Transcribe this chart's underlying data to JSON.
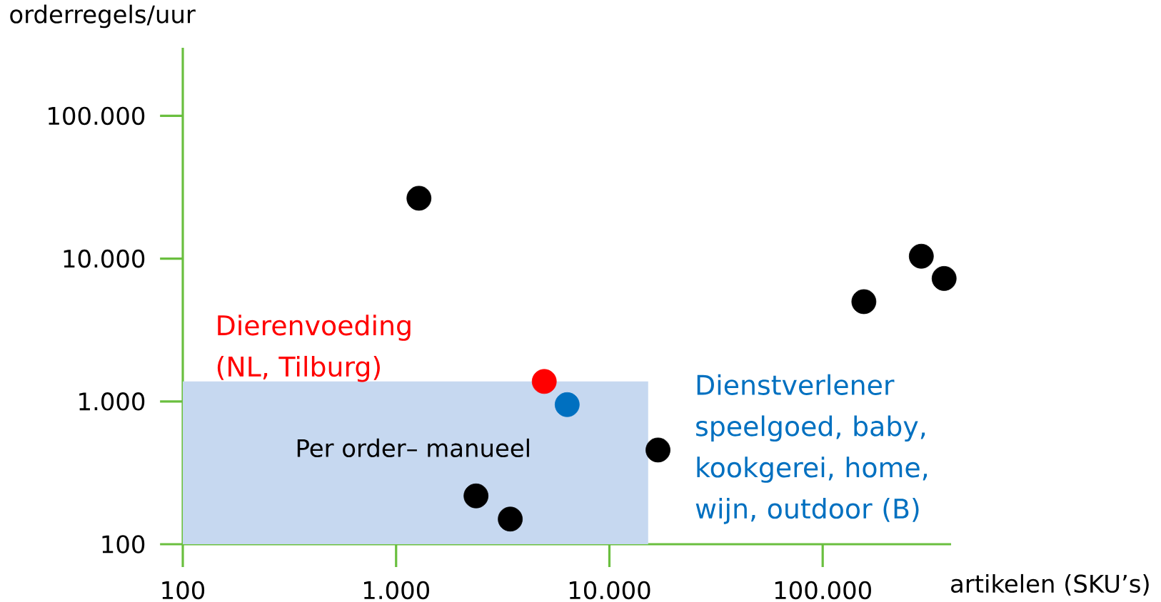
{
  "chart_data": {
    "type": "scatter",
    "xlabel": "artikelen (SKU’s)",
    "ylabel": "orderregels/uur",
    "log": "xy",
    "xlim": [
      100,
      400000
    ],
    "ylim": [
      100,
      300000
    ],
    "xticks": [
      100,
      {
        "value": 1000,
        "label": "1.000"
      },
      {
        "value": 10000,
        "label": "10.000"
      },
      {
        "value": 100000,
        "label": "100.000"
      }
    ],
    "yticks": [
      100,
      {
        "value": 1000,
        "label": "1.000"
      },
      {
        "value": 10000,
        "label": "10.000"
      },
      {
        "value": 100000,
        "label": "100.000"
      }
    ],
    "grid": false,
    "series": [
      {
        "type": "area",
        "name": "Per order– manueel",
        "color": "#c6d8f0",
        "x": [
          100,
          15200
        ],
        "values": [
          1380,
          1380
        ]
      },
      {
        "color": "#000000",
        "x": [
          1280,
          290000,
          371000,
          156000,
          16900,
          2370,
          3430
        ],
        "values": [
          26500,
          10400,
          7270,
          5000,
          457,
          218,
          150
        ]
      },
      {
        "name": "Dierenvoeding (NL, Tilburg)",
        "color": "#ff0000",
        "x": [
          4950
        ],
        "values": [
          1380
        ]
      },
      {
        "name": "Dienstverlener speelgoed, baby, kookgerei, home, wijn, outdoor (B)",
        "color": "#0070c0",
        "x": [
          6340
        ],
        "values": [
          950
        ]
      }
    ]
  }
}
